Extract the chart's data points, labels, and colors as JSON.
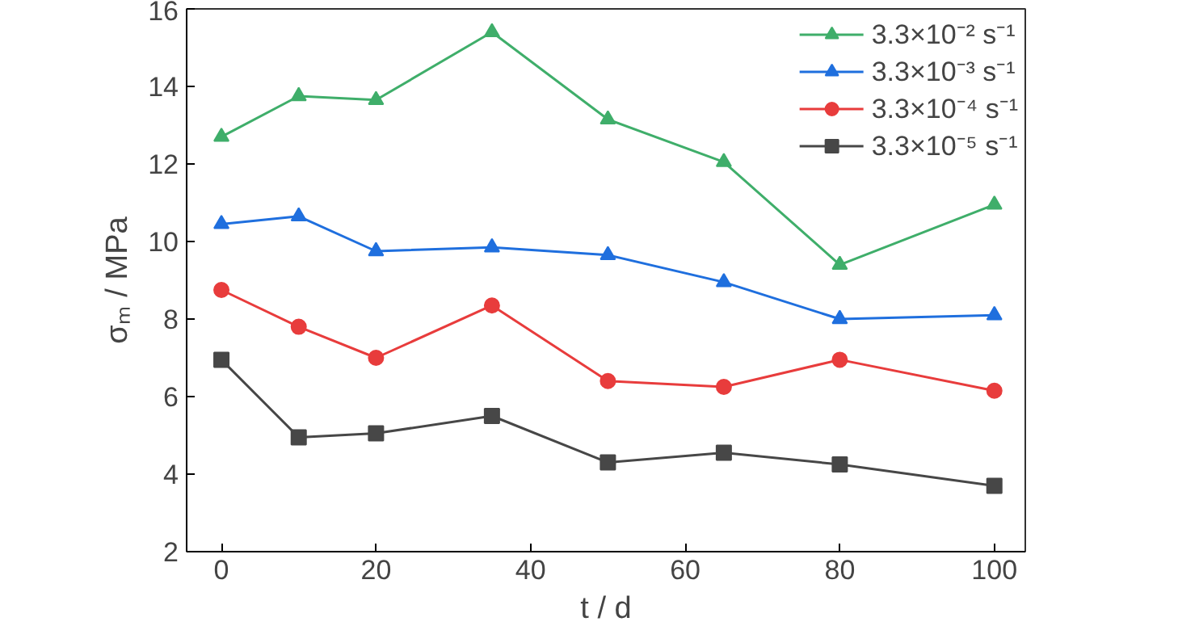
{
  "chart_data": {
    "type": "line",
    "xlabel": "t / d",
    "ylabel": "σₘ / MPa",
    "x": [
      0,
      10,
      20,
      35,
      50,
      65,
      80,
      100
    ],
    "xlim": [
      -4.5,
      104
    ],
    "xticks": [
      0,
      20,
      40,
      60,
      80,
      100
    ],
    "ylim": [
      2,
      16
    ],
    "yticks": [
      2,
      4,
      6,
      8,
      10,
      12,
      14,
      16
    ],
    "grid": false,
    "legend": "top right",
    "line_style": "solid",
    "series": [
      {
        "name": "3.3×10⁻² s⁻¹",
        "color": "#3fae6a",
        "marker": "triangle",
        "values": [
          12.7,
          13.75,
          13.65,
          15.4,
          13.15,
          12.05,
          9.4,
          10.95
        ]
      },
      {
        "name": "3.3×10⁻³ s⁻¹",
        "color": "#1f6fde",
        "marker": "triangle",
        "values": [
          10.45,
          10.65,
          9.75,
          9.85,
          9.65,
          8.95,
          8.0,
          8.1
        ]
      },
      {
        "name": "3.3×10⁻⁴ s⁻¹",
        "color": "#e83c3c",
        "marker": "circle",
        "values": [
          8.75,
          7.8,
          7.0,
          8.35,
          6.4,
          6.25,
          6.95,
          6.15
        ]
      },
      {
        "name": "3.3×10⁻⁵ s⁻¹",
        "color": "#474747",
        "marker": "square",
        "values": [
          6.95,
          4.95,
          5.05,
          5.5,
          4.3,
          4.55,
          4.25,
          3.7
        ]
      }
    ]
  }
}
